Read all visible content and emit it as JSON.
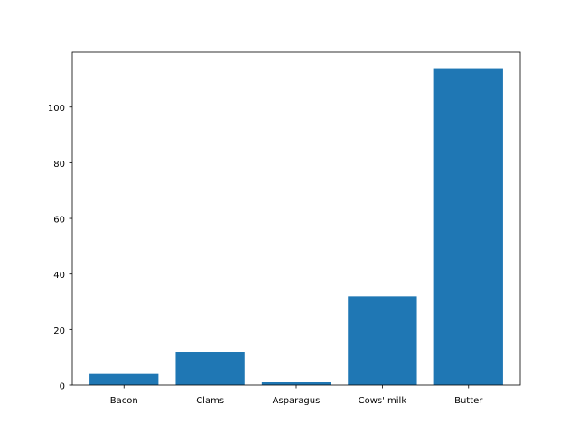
{
  "chart_data": {
    "type": "bar",
    "title": "",
    "xlabel": "",
    "ylabel": "",
    "categories": [
      "Bacon",
      "Clams",
      "Asparagus",
      "Cows' milk",
      "Butter"
    ],
    "values": [
      4,
      12,
      1,
      32,
      114
    ],
    "ylim": [
      0,
      119.7
    ],
    "yticks": [
      0,
      20,
      40,
      60,
      80,
      100
    ],
    "grid": false,
    "bar_color": "#1f77b4"
  }
}
